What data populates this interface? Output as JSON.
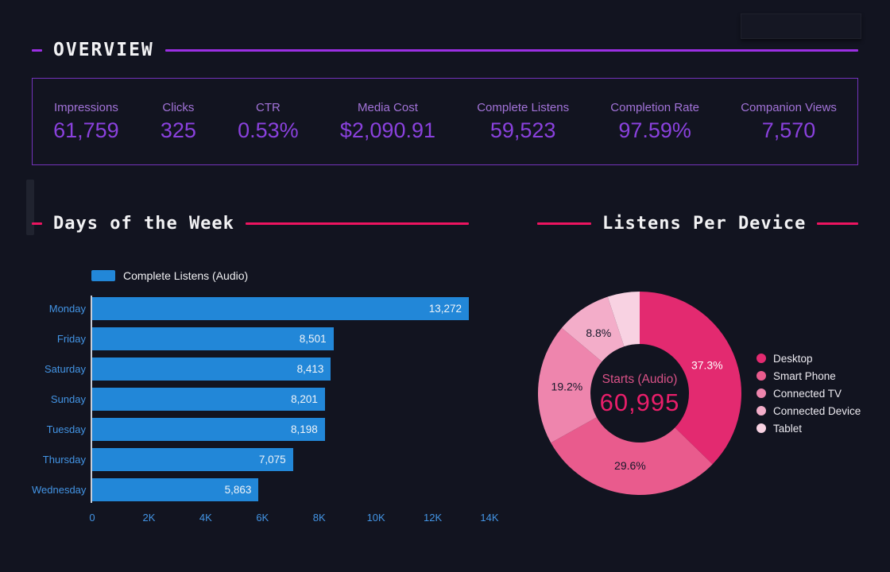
{
  "page": {
    "background": "#121420",
    "accent_purple": "#9b2fe3",
    "accent_pink": "#ed1460"
  },
  "overview": {
    "title": "OVERVIEW",
    "metrics": [
      {
        "label": "Impressions",
        "value": "61,759"
      },
      {
        "label": "Clicks",
        "value": "325"
      },
      {
        "label": "CTR",
        "value": "0.53%"
      },
      {
        "label": "Media Cost",
        "value": "$2,090.91"
      },
      {
        "label": "Complete Listens",
        "value": "59,523"
      },
      {
        "label": "Completion Rate",
        "value": "97.59%"
      },
      {
        "label": "Companion Views",
        "value": "7,570"
      }
    ]
  },
  "chart_data": [
    {
      "type": "bar",
      "orientation": "horizontal",
      "title": "Days of the Week",
      "legend": "Complete Listens (Audio)",
      "series_color": "#2287d8",
      "categories": [
        "Monday",
        "Friday",
        "Saturday",
        "Sunday",
        "Tuesday",
        "Thursday",
        "Wednesday"
      ],
      "values": [
        13272,
        8501,
        8413,
        8201,
        8198,
        7075,
        5863
      ],
      "value_labels": [
        "13,272",
        "8,501",
        "8,413",
        "8,201",
        "8,198",
        "7,075",
        "5,863"
      ],
      "xlim": [
        0,
        14000
      ],
      "x_ticks": [
        "0",
        "2K",
        "4K",
        "6K",
        "8K",
        "10K",
        "12K",
        "14K"
      ],
      "grid": false,
      "label_color": "#4394e4"
    },
    {
      "type": "pie",
      "title": "Listens Per Device",
      "donut": true,
      "center_label": "Starts (Audio)",
      "center_value": "60,995",
      "legend_position": "right",
      "slices": [
        {
          "name": "Desktop",
          "pct": 37.3,
          "label": "37.3%",
          "color": "#e32a70",
          "label_color": "#ffffff"
        },
        {
          "name": "Smart Phone",
          "pct": 29.6,
          "label": "29.6%",
          "color": "#e95b8d",
          "label_color": "#16182a"
        },
        {
          "name": "Connected TV",
          "pct": 19.2,
          "label": "19.2%",
          "color": "#ee85ad",
          "label_color": "#16182a"
        },
        {
          "name": "Connected Device",
          "pct": 8.8,
          "label": "8.8%",
          "color": "#f3adc9",
          "label_color": "#16182a"
        },
        {
          "name": "Tablet",
          "pct": 5.1,
          "label": "",
          "color": "#f8d2e2",
          "label_color": "#16182a"
        }
      ]
    }
  ]
}
